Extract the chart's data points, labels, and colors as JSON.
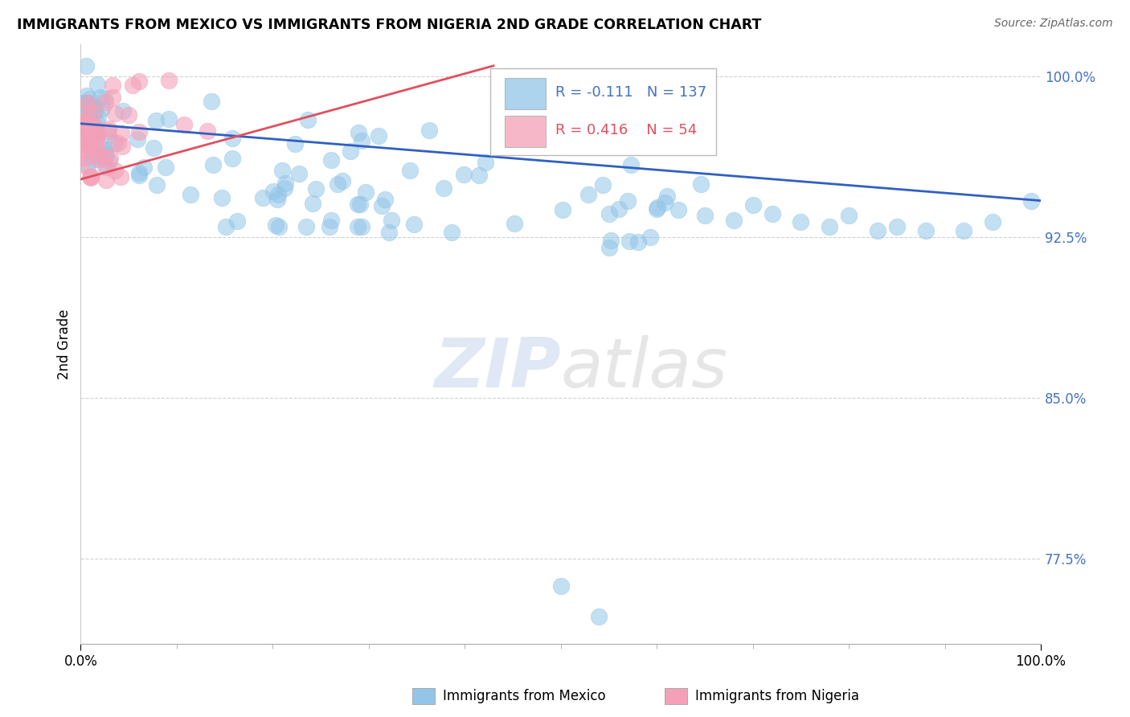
{
  "title": "IMMIGRANTS FROM MEXICO VS IMMIGRANTS FROM NIGERIA 2ND GRADE CORRELATION CHART",
  "source": "Source: ZipAtlas.com",
  "ylabel": "2nd Grade",
  "xlim": [
    0.0,
    1.0
  ],
  "ylim": [
    0.735,
    1.015
  ],
  "yticks": [
    0.775,
    0.85,
    0.925,
    1.0
  ],
  "ytick_labels": [
    "77.5%",
    "85.0%",
    "92.5%",
    "100.0%"
  ],
  "xticks": [
    0.0,
    1.0
  ],
  "xtick_labels": [
    "0.0%",
    "100.0%"
  ],
  "legend_r_mexico": "-0.111",
  "legend_n_mexico": "137",
  "legend_r_nigeria": "0.416",
  "legend_n_nigeria": "54",
  "mexico_color": "#92C5E8",
  "nigeria_color": "#F4A0B8",
  "mexico_line_color": "#3060C0",
  "nigeria_line_color": "#E05060",
  "blue_trend_x": [
    0.0,
    1.0
  ],
  "blue_trend_y": [
    0.978,
    0.942
  ],
  "pink_trend_x": [
    0.0,
    0.43
  ],
  "pink_trend_y": [
    0.952,
    1.005
  ]
}
